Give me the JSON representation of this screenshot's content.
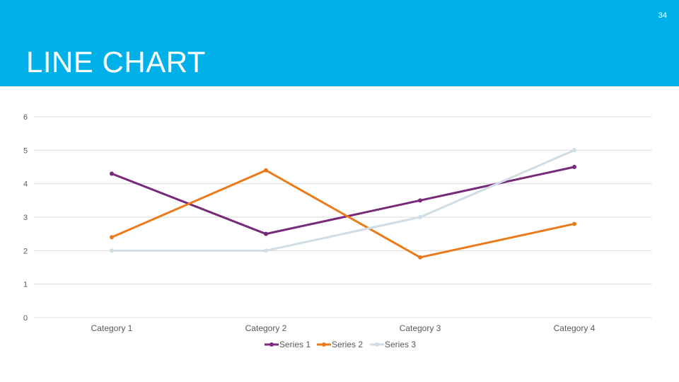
{
  "slide": {
    "number": "34",
    "title": "LINE CHART"
  },
  "colors": {
    "header": "#00b0e8",
    "series1": "#782a7a",
    "series2": "#ea7a1a",
    "series3": "#cfdde4",
    "gridline": "#d9d9d9",
    "label": "#595959"
  },
  "chart_data": {
    "type": "line",
    "categories": [
      "Category 1",
      "Category 2",
      "Category 3",
      "Category 4"
    ],
    "series": [
      {
        "name": "Series 1",
        "values": [
          4.3,
          2.5,
          3.5,
          4.5
        ],
        "color": "#782a7a"
      },
      {
        "name": "Series 2",
        "values": [
          2.4,
          4.4,
          1.8,
          2.8
        ],
        "color": "#ea7a1a"
      },
      {
        "name": "Series 3",
        "values": [
          2,
          2,
          3,
          5
        ],
        "color": "#cfdde4"
      }
    ],
    "y_ticks": [
      "0",
      "1",
      "2",
      "3",
      "4",
      "5",
      "6"
    ],
    "ylim": [
      0,
      6
    ],
    "grid": true,
    "legend": "bottom"
  }
}
